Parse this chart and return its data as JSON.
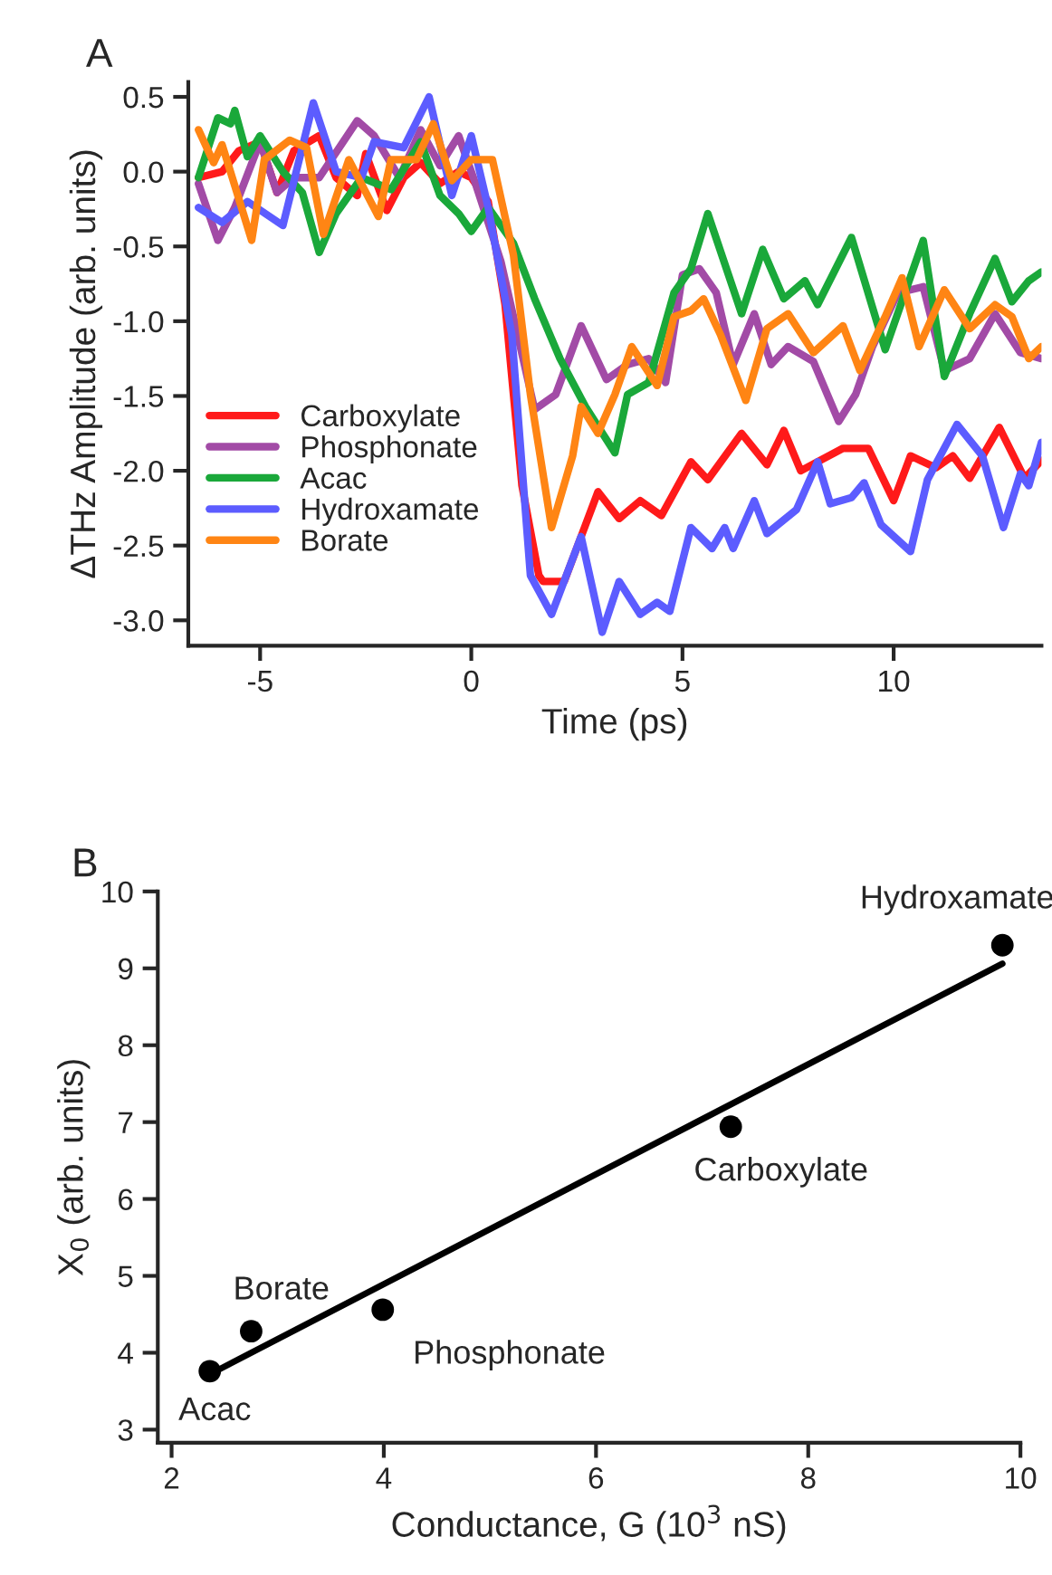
{
  "chart_data": [
    {
      "type": "line",
      "title": "A",
      "xlabel": "Time (ps)",
      "ylabel": "ΔTHz Amplitude (arb. units)",
      "xlim": [
        -6.7,
        13.5
      ],
      "ylim": [
        -3.17,
        0.6
      ],
      "xticks": [
        {
          "value": -5,
          "label": "-5"
        },
        0,
        5,
        10
      ],
      "yticks": [
        {
          "value": -3.0,
          "label": "-3.0"
        },
        {
          "value": -2.5,
          "label": "-2.5"
        },
        {
          "value": -2.0,
          "label": "-2.0"
        },
        {
          "value": -1.5,
          "label": "-1.5"
        },
        {
          "value": -1.0,
          "label": "-1.0"
        },
        {
          "value": -0.5,
          "label": "-0.5"
        },
        {
          "value": 0.0,
          "label": "0.0"
        },
        {
          "value": 0.5,
          "label": "0.5"
        }
      ],
      "legend": "bottom left",
      "grid": false,
      "line_style": "solid",
      "marker": "none",
      "series": [
        {
          "name": "Carboxylate",
          "color": "#ff1a1a",
          "x": [
            -6.46,
            -5.9,
            -5.5,
            -5.0,
            -4.6,
            -4.2,
            -3.6,
            -3.2,
            -2.7,
            -2.5,
            -2.0,
            -1.6,
            -1.2,
            -0.74,
            -0.3,
            0,
            0.4,
            0.8,
            1.2,
            1.6,
            1.7,
            2.2,
            3.0,
            3.5,
            4.0,
            4.5,
            5.2,
            5.6,
            6.4,
            7.0,
            7.4,
            7.8,
            8.8,
            9.4,
            10.0,
            10.4,
            11.0,
            11.4,
            11.8,
            12.5,
            13.1,
            13.5
          ],
          "values": [
            -0.04,
            0,
            0.14,
            0.2,
            -0.14,
            0.14,
            0.24,
            -0.04,
            -0.16,
            0.12,
            -0.26,
            -0.04,
            0.06,
            -0.08,
            0,
            -0.04,
            -0.2,
            -0.89,
            -2.1,
            -2.7,
            -2.74,
            -2.74,
            -2.14,
            -2.32,
            -2.2,
            -2.3,
            -1.94,
            -2.06,
            -1.75,
            -1.96,
            -1.73,
            -2.0,
            -1.85,
            -1.85,
            -2.2,
            -1.9,
            -1.98,
            -1.9,
            -2.05,
            -1.71,
            -2.05,
            -1.93
          ]
        },
        {
          "name": "Phosphonate",
          "color": "#a24ba6",
          "x": [
            -6.46,
            -6.0,
            -5.6,
            -5.0,
            -4.6,
            -4.2,
            -3.6,
            -2.7,
            -2.3,
            -1.7,
            -1.2,
            -0.74,
            -0.3,
            0.1,
            0.7,
            1.5,
            2.0,
            2.6,
            3.2,
            3.7,
            4.2,
            4.6,
            5.0,
            5.4,
            5.8,
            6.2,
            6.7,
            7.1,
            7.5,
            8.1,
            8.7,
            9.1,
            9.5,
            10.1,
            10.7,
            11.2,
            11.8,
            12.4,
            13.0,
            13.5
          ],
          "values": [
            -0.08,
            -0.46,
            -0.24,
            0.2,
            -0.14,
            -0.04,
            -0.04,
            0.34,
            0.24,
            -0.04,
            0.28,
            0.04,
            0.24,
            -0.08,
            -0.6,
            -1.59,
            -1.49,
            -1.03,
            -1.39,
            -1.29,
            -1.25,
            -1.41,
            -0.69,
            -0.65,
            -0.81,
            -1.29,
            -0.95,
            -1.29,
            -1.17,
            -1.27,
            -1.67,
            -1.49,
            -1.17,
            -0.81,
            -0.77,
            -1.33,
            -1.25,
            -0.95,
            -1.21,
            -1.25
          ]
        },
        {
          "name": "Acac",
          "color": "#1aa83a",
          "x": [
            -6.46,
            -6.0,
            -5.7,
            -5.6,
            -5.3,
            -5.0,
            -4.46,
            -4.0,
            -3.6,
            -3.2,
            -2.6,
            -1.9,
            -1.2,
            -0.74,
            -0.3,
            0,
            0.4,
            1.0,
            1.5,
            2.1,
            2.7,
            3.4,
            3.7,
            4.2,
            4.8,
            5.2,
            5.6,
            6.4,
            6.9,
            7.4,
            7.9,
            8.2,
            9.0,
            9.8,
            10.7,
            11.2,
            11.8,
            12.4,
            12.8,
            13.2,
            13.5
          ],
          "values": [
            -0.04,
            0.36,
            0.32,
            0.41,
            0.1,
            0.24,
            0,
            -0.14,
            -0.54,
            -0.28,
            -0.04,
            -0.12,
            0.2,
            -0.16,
            -0.28,
            -0.4,
            -0.24,
            -0.48,
            -0.85,
            -1.25,
            -1.57,
            -1.88,
            -1.49,
            -1.41,
            -0.81,
            -0.65,
            -0.28,
            -0.95,
            -0.52,
            -0.85,
            -0.73,
            -0.89,
            -0.44,
            -1.19,
            -0.46,
            -1.37,
            -0.95,
            -0.58,
            -0.87,
            -0.73,
            -0.67
          ]
        },
        {
          "name": "Hydroxamate",
          "color": "#5c5cff",
          "x": [
            -6.46,
            -5.9,
            -5.3,
            -4.46,
            -3.74,
            -3.2,
            -2.6,
            -2.3,
            -1.6,
            -1.0,
            -0.46,
            0,
            0.4,
            0.96,
            1.4,
            1.9,
            2.6,
            3.1,
            3.5,
            4.0,
            4.4,
            4.7,
            5.2,
            5.7,
            6.0,
            6.2,
            6.7,
            7.0,
            7.7,
            8.2,
            8.5,
            9.0,
            9.3,
            9.7,
            10.4,
            10.8,
            11.5,
            12.1,
            12.6,
            13.0,
            13.2,
            13.5
          ],
          "values": [
            -0.24,
            -0.34,
            -0.2,
            -0.36,
            0.46,
            0,
            -0.04,
            0.2,
            0.16,
            0.5,
            -0.16,
            0.24,
            -0.24,
            -1.09,
            -2.7,
            -2.96,
            -2.44,
            -3.08,
            -2.74,
            -2.96,
            -2.88,
            -2.94,
            -2.38,
            -2.52,
            -2.38,
            -2.52,
            -2.2,
            -2.42,
            -2.26,
            -1.94,
            -2.22,
            -2.18,
            -2.08,
            -2.36,
            -2.54,
            -2.06,
            -1.69,
            -1.9,
            -2.38,
            -2.02,
            -2.1,
            -1.81
          ]
        },
        {
          "name": "Borate",
          "color": "#ff8514",
          "x": [
            -6.46,
            -6.1,
            -5.9,
            -5.2,
            -4.9,
            -4.3,
            -3.9,
            -3.5,
            -2.9,
            -2.2,
            -1.9,
            -1.3,
            -0.9,
            -0.46,
            0,
            0.5,
            1.0,
            1.4,
            1.9,
            2.4,
            2.6,
            3.0,
            3.4,
            3.8,
            4.4,
            4.8,
            5.2,
            5.5,
            5.9,
            6.5,
            7.0,
            7.5,
            8.1,
            8.8,
            9.2,
            9.8,
            10.2,
            10.6,
            11.2,
            11.8,
            12.4,
            12.8,
            13.2,
            13.5
          ],
          "values": [
            0.28,
            0.06,
            0.18,
            -0.46,
            0.08,
            0.21,
            0.16,
            -0.42,
            0.08,
            -0.3,
            0.08,
            0.08,
            0.32,
            -0.06,
            0.08,
            0.08,
            -0.56,
            -1.49,
            -2.38,
            -1.9,
            -1.57,
            -1.75,
            -1.49,
            -1.17,
            -1.43,
            -0.97,
            -0.93,
            -0.85,
            -1.09,
            -1.53,
            -1.05,
            -0.95,
            -1.21,
            -1.03,
            -1.33,
            -0.97,
            -0.71,
            -1.17,
            -0.79,
            -1.05,
            -0.89,
            -0.97,
            -1.25,
            -1.17
          ]
        }
      ]
    },
    {
      "type": "scatter",
      "title": "B",
      "xlabel": "Conductance, G (10$^{3}$ nS)",
      "ylabel": "X$_{0}$ (arb. units)",
      "xlim": [
        1.87,
        10
      ],
      "ylim": [
        2.83,
        10
      ],
      "xticks": [
        2,
        4,
        6,
        8,
        10
      ],
      "yticks": [
        3,
        4,
        5,
        6,
        7,
        8,
        9,
        10
      ],
      "grid": false,
      "series": [
        {
          "type": "scatter",
          "marker": "circle",
          "color": "#000000",
          "x": [
            2.36,
            2.75,
            3.99,
            7.27,
            9.83
          ],
          "values": [
            3.76,
            4.28,
            4.56,
            6.94,
            9.3
          ]
        },
        {
          "type": "line",
          "color": "#000000",
          "x": [
            2.36,
            9.83
          ],
          "values": [
            3.72,
            9.06
          ]
        }
      ],
      "annotations": [
        {
          "text": "Acac",
          "x": 2.36,
          "y": 3.76
        },
        {
          "text": "Borate",
          "x": 2.75,
          "y": 4.28
        },
        {
          "text": "Phosphonate",
          "x": 3.99,
          "y": 4.56
        },
        {
          "text": "Carboxylate",
          "x": 7.27,
          "y": 6.94
        },
        {
          "text": "Hydroxamate",
          "x": 9.83,
          "y": 9.3
        }
      ]
    }
  ]
}
